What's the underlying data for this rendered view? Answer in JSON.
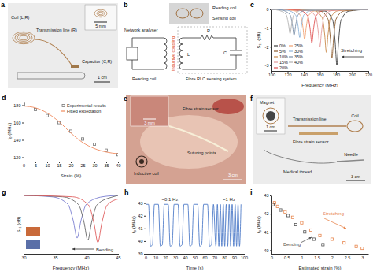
{
  "chart_data": [
    {
      "type": "line",
      "title": "c",
      "xlabel": "Frequency (MHz)",
      "ylabel": "S₁₁ (dB)",
      "xlim": [
        100,
        220
      ],
      "xticks": [
        100,
        120,
        140,
        160,
        180,
        200,
        220
      ],
      "ylim": [
        -3.3,
        0
      ],
      "yticks": [
        0,
        -1,
        -2,
        -3
      ],
      "legend": "lower left",
      "annotations": [
        "Stretching"
      ],
      "series": [
        {
          "name": "0%",
          "color": "#3d3d3d",
          "x": [
            100,
            166,
            176,
            179,
            181,
            183,
            186,
            196,
            220
          ],
          "values": [
            0,
            -0.09,
            -0.6,
            -1.8,
            -3.0,
            -1.8,
            -0.6,
            -0.09,
            0
          ]
        },
        {
          "name": "5%",
          "color": "#8c5a2b",
          "x": [
            100,
            160,
            170,
            173,
            175,
            177,
            180,
            190,
            220
          ],
          "values": [
            0,
            -0.08,
            -0.52,
            -1.56,
            -2.6,
            -1.56,
            -0.52,
            -0.08,
            0
          ]
        },
        {
          "name": "10%",
          "color": "#c98a4b",
          "x": [
            100,
            153,
            163,
            166,
            168,
            170,
            173,
            183,
            220
          ],
          "values": [
            0,
            -0.07,
            -0.46,
            -1.38,
            -2.3,
            -1.38,
            -0.46,
            -0.07,
            0
          ]
        },
        {
          "name": "15%",
          "color": "#e39a9a",
          "x": [
            100,
            145,
            155,
            158,
            160,
            162,
            165,
            175,
            220
          ],
          "values": [
            0,
            -0.06,
            -0.4,
            -1.2,
            -2.0,
            -1.2,
            -0.4,
            -0.06,
            0
          ]
        },
        {
          "name": "20%",
          "color": "#e05050",
          "x": [
            100,
            135,
            145,
            148,
            150,
            152,
            155,
            165,
            220
          ],
          "values": [
            0,
            -0.05,
            -0.36,
            -1.08,
            -1.8,
            -1.08,
            -0.36,
            -0.05,
            0
          ]
        },
        {
          "name": "25%",
          "color": "#f0a070",
          "x": [
            100,
            126,
            136,
            139,
            141,
            143,
            146,
            156,
            220
          ],
          "values": [
            0,
            -0.05,
            -0.32,
            -0.96,
            -1.6,
            -0.96,
            -0.32,
            -0.05,
            0
          ]
        },
        {
          "name": "30%",
          "color": "#8fb4d9",
          "x": [
            100,
            120,
            130,
            133,
            135,
            137,
            140,
            150,
            220
          ],
          "values": [
            0,
            -0.05,
            -0.3,
            -0.9,
            -1.5,
            -0.9,
            -0.3,
            -0.05,
            0
          ]
        },
        {
          "name": "35%",
          "color": "#7a8fa8",
          "x": [
            100,
            113,
            123,
            126,
            128,
            130,
            133,
            143,
            220
          ],
          "values": [
            0,
            -0.04,
            -0.28,
            -0.84,
            -1.4,
            -0.84,
            -0.28,
            -0.04,
            0
          ]
        },
        {
          "name": "40%",
          "color": "#b0b0b0",
          "x": [
            100,
            108,
            118,
            121,
            123,
            125,
            128,
            138,
            220
          ],
          "values": [
            0,
            -0.04,
            -0.26,
            -0.78,
            -1.3,
            -0.78,
            -0.26,
            -0.04,
            0
          ]
        }
      ]
    },
    {
      "type": "line",
      "title": "d",
      "xlabel": "Strain (%)",
      "ylabel": "f₀ (MHz)",
      "xlim": [
        0,
        40
      ],
      "xticks": [
        0,
        5,
        10,
        15,
        20,
        25,
        30,
        35,
        40
      ],
      "ylim": [
        115,
        185
      ],
      "yticks": [
        120,
        140,
        160,
        180
      ],
      "legend": "upper right",
      "series": [
        {
          "name": "Experimental results",
          "type": "scatter",
          "marker": "square",
          "color": "#777777",
          "x": [
            0,
            5,
            10,
            15,
            20,
            25,
            30,
            35,
            40
          ],
          "values": [
            181,
            175,
            168,
            160,
            150,
            141,
            135,
            128,
            123
          ]
        },
        {
          "name": "Fitted expectation",
          "type": "line",
          "color": "#f08a5d",
          "x": [
            0,
            5,
            10,
            15,
            20,
            25,
            30,
            35,
            40
          ],
          "values": [
            179,
            177,
            171,
            161,
            148,
            137,
            130,
            126,
            124
          ]
        }
      ]
    },
    {
      "type": "line",
      "title": "g",
      "xlabel": "Frequency (MHz)",
      "ylabel": "S₁₁ (dB)",
      "xlim": [
        30,
        45
      ],
      "xticks": [
        30,
        35,
        40,
        45
      ],
      "ylim": [
        -13,
        0
      ],
      "tick_labels": "x",
      "annotations": [
        "Bending"
      ],
      "series": [
        {
          "color": "#7b7fd0",
          "x": [
            30,
            34.5,
            37,
            37.9,
            38.5,
            39.1,
            40,
            42.5,
            45
          ],
          "values": [
            0,
            -0.3,
            -1.9,
            -5.7,
            -9.5,
            -5.7,
            -1.9,
            -0.3,
            0
          ]
        },
        {
          "color": "#666666",
          "x": [
            30,
            36.2,
            38.7,
            39.6,
            40.2,
            40.8,
            41.7,
            44.2,
            45
          ],
          "values": [
            0,
            -0.3,
            -2,
            -6,
            -10,
            -6,
            -2,
            -0.3,
            0
          ]
        },
        {
          "color": "#e06060",
          "x": [
            30,
            37.8,
            40.3,
            41.2,
            41.8,
            42.4,
            43.3,
            45
          ],
          "values": [
            0,
            -0.3,
            -2.1,
            -6.3,
            -10.5,
            -6.3,
            -2.1,
            -0.8
          ]
        }
      ]
    },
    {
      "type": "line",
      "title": "h",
      "xlabel": "Time (s)",
      "ylabel": "f₀ (MHz)",
      "xlim": [
        0,
        100
      ],
      "xticks": [
        0,
        10,
        20,
        30,
        40,
        50,
        60,
        70,
        80,
        90,
        100
      ],
      "ylim": [
        39,
        43.6
      ],
      "yticks": [
        39,
        40,
        41,
        42,
        43
      ],
      "annotations": [
        "~0.1 Hz",
        "~1 Hz"
      ],
      "series": [
        {
          "color": "#4f7cc8",
          "x": [
            0,
            3,
            5,
            7,
            9,
            13,
            15,
            17,
            19,
            23,
            25,
            27,
            29,
            33,
            35,
            37,
            39,
            43,
            45,
            47,
            49,
            53,
            55,
            57,
            59,
            63,
            65,
            67,
            69,
            71.5,
            73,
            74.5,
            76,
            77.5,
            79,
            80.5,
            82,
            83.5,
            85,
            86.5,
            88,
            89.5,
            91,
            92.5,
            94,
            95.5,
            97
          ],
          "values": [
            42.9,
            42.9,
            39.6,
            39.7,
            42.9,
            42.9,
            39.6,
            39.7,
            42.9,
            42.9,
            39.6,
            39.7,
            42.9,
            42.9,
            39.6,
            39.7,
            42.9,
            42.9,
            39.6,
            39.7,
            42.9,
            42.9,
            39.6,
            39.7,
            42.9,
            42.9,
            39.6,
            39.7,
            42.9,
            39.6,
            42.9,
            39.6,
            42.9,
            39.6,
            42.9,
            39.6,
            42.9,
            39.6,
            42.9,
            39.6,
            42.9,
            39.6,
            42.9,
            39.6,
            42.9,
            39.6,
            42.9
          ]
        }
      ]
    },
    {
      "type": "scatter",
      "title": "i",
      "xlabel": "Estimated strain (%)",
      "ylabel": "f₀ (MHz)",
      "xlim": [
        0,
        3.2
      ],
      "xticks": [
        0,
        0.5,
        1,
        1.5,
        2,
        2.5,
        3
      ],
      "ylim": [
        39.8,
        43
      ],
      "yticks": [
        40,
        41,
        42,
        43
      ],
      "annotations": [
        "Stretching",
        "Bending"
      ],
      "series": [
        {
          "marker": "square",
          "color": "#e8874f",
          "x": [
            0.1,
            0.2,
            0.45,
            0.7,
            1.0,
            1.3,
            1.6,
            2.0,
            2.4,
            2.8,
            3.0
          ],
          "values": [
            42.6,
            42.4,
            42.1,
            41.8,
            41.5,
            41.1,
            40.8,
            40.6,
            40.4,
            40.2,
            40.1
          ]
        },
        {
          "marker": "square",
          "color": "#555555",
          "x": [
            0.05,
            0.3,
            0.55,
            0.8,
            1.1,
            1.4,
            1.7
          ],
          "values": [
            42.5,
            42.2,
            41.9,
            41.4,
            41.0,
            40.6,
            40.3
          ]
        }
      ]
    }
  ],
  "panels": [
    {
      "label": "a",
      "texts": [
        "Coil (L,R)",
        "Transmission line (R)",
        "Capacitor (C,R)",
        "5 mm",
        "1 cm"
      ]
    },
    {
      "label": "b",
      "texts": [
        "Reading coil",
        "Sensing coil",
        "Network analyser",
        "Inductive coupling",
        "L",
        "R",
        "C",
        "Fibre RLC sensing system",
        "Reading coil"
      ]
    },
    {
      "label": "e",
      "texts": [
        "3 mm",
        "Inductive coil",
        "Fibre strain sensor",
        "Suturing points",
        "3 cm"
      ]
    },
    {
      "label": "f",
      "texts": [
        "Magnet",
        "1 cm",
        "Transmission line",
        "Coil",
        "Fibre strain sensor",
        "Needle",
        "Medical thread",
        "3 cm"
      ]
    }
  ]
}
